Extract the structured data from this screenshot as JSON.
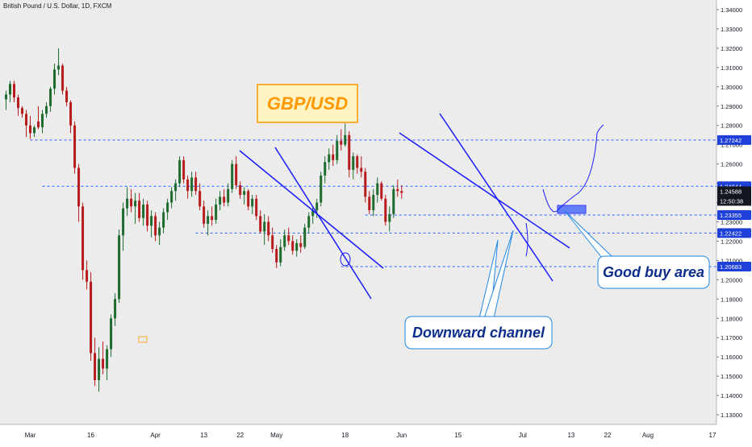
{
  "header": {
    "title": "British Pound / U.S. Dollar, 1D, FXCM"
  },
  "colors": {
    "up": "#1e6b2e",
    "down": "#b71c1c",
    "hline": "#2962ff",
    "channel": "#1a1aff",
    "price_label_bg": "#1e40d8",
    "current_label_bg": "#131722",
    "gbpusd_box": "#ff9800",
    "callout_border": "#1e88e5",
    "callout_text": "#0d2e8a"
  },
  "annotations": {
    "pair_label": "GBP/USD",
    "good_buy_area": "Good buy area",
    "downward_channel": "Downward channel"
  },
  "chart_data": {
    "type": "candlestick",
    "title": "British Pound / U.S. Dollar, 1D, FXCM",
    "ylim": [
      1.125,
      1.345
    ],
    "y_ticks": [
      1.13,
      1.14,
      1.15,
      1.16,
      1.17,
      1.18,
      1.19,
      1.2,
      1.21,
      1.22,
      1.23,
      1.24,
      1.25,
      1.26,
      1.27,
      1.28,
      1.29,
      1.3,
      1.31,
      1.32,
      1.33,
      1.34
    ],
    "y_tick_labels": [
      "1.13000",
      "1.14000",
      "1.15000",
      "1.16000",
      "1.17000",
      "1.18000",
      "1.19000",
      "1.20000",
      "1.21000",
      "1.22000",
      "1.23000",
      "1.24000",
      "1.25000",
      "1.26000",
      "1.27000",
      "1.28000",
      "1.29000",
      "1.30000",
      "1.31000",
      "1.32000",
      "1.33000",
      "1.34000"
    ],
    "x_ticks": [
      {
        "label": "Mar",
        "day": 1
      },
      {
        "label": "16",
        "day": 16
      },
      {
        "label": "Apr",
        "day": 32
      },
      {
        "label": "13",
        "day": 44
      },
      {
        "label": "22",
        "day": 53
      },
      {
        "label": "May",
        "day": 62
      },
      {
        "label": "18",
        "day": 79
      },
      {
        "label": "Jun",
        "day": 93
      },
      {
        "label": "15",
        "day": 107
      },
      {
        "label": "Jul",
        "day": 123
      },
      {
        "label": "13",
        "day": 135
      },
      {
        "label": "22",
        "day": 144
      },
      {
        "label": "Aug",
        "day": 154
      },
      {
        "label": "17",
        "day": 170
      }
    ],
    "xlim": [
      -6.5,
      171
    ],
    "horizontal_levels": [
      {
        "value": 1.27242,
        "label": "1.27242",
        "x_from": 1
      },
      {
        "value": 1.24844,
        "label": "1.24844",
        "x_from": 4
      },
      {
        "value": 1.23355,
        "label": "1.23355",
        "x_from": 84
      },
      {
        "value": 1.22422,
        "label": "1.22422",
        "x_from": 42
      },
      {
        "value": 1.20683,
        "label": "1.20683",
        "x_from": 78
      }
    ],
    "current_price": {
      "value": 1.24588,
      "label": "1.24588",
      "countdown": "12:50:38"
    },
    "candles": [
      {
        "d": -5,
        "o": 1.2935,
        "h": 1.298,
        "l": 1.288,
        "c": 1.296
      },
      {
        "d": -4,
        "o": 1.296,
        "h": 1.303,
        "l": 1.292,
        "c": 1.3015
      },
      {
        "d": -3,
        "o": 1.3015,
        "h": 1.303,
        "l": 1.292,
        "c": 1.2945
      },
      {
        "d": -2,
        "o": 1.2945,
        "h": 1.296,
        "l": 1.285,
        "c": 1.289
      },
      {
        "d": -1,
        "o": 1.289,
        "h": 1.29,
        "l": 1.284,
        "c": 1.286
      },
      {
        "d": 0,
        "o": 1.286,
        "h": 1.288,
        "l": 1.274,
        "c": 1.28
      },
      {
        "d": 1,
        "o": 1.28,
        "h": 1.285,
        "l": 1.273,
        "c": 1.276
      },
      {
        "d": 2,
        "o": 1.276,
        "h": 1.28,
        "l": 1.274,
        "c": 1.279
      },
      {
        "d": 3,
        "o": 1.282,
        "h": 1.29,
        "l": 1.278,
        "c": 1.279
      },
      {
        "d": 4,
        "o": 1.279,
        "h": 1.288,
        "l": 1.276,
        "c": 1.286
      },
      {
        "d": 5,
        "o": 1.286,
        "h": 1.292,
        "l": 1.284,
        "c": 1.29
      },
      {
        "d": 6,
        "o": 1.29,
        "h": 1.3,
        "l": 1.287,
        "c": 1.299
      },
      {
        "d": 7,
        "o": 1.299,
        "h": 1.312,
        "l": 1.296,
        "c": 1.309
      },
      {
        "d": 8,
        "o": 1.309,
        "h": 1.32,
        "l": 1.306,
        "c": 1.311
      },
      {
        "d": 9,
        "o": 1.311,
        "h": 1.312,
        "l": 1.296,
        "c": 1.298
      },
      {
        "d": 10,
        "o": 1.298,
        "h": 1.3,
        "l": 1.29,
        "c": 1.292
      },
      {
        "d": 11,
        "o": 1.292,
        "h": 1.293,
        "l": 1.276,
        "c": 1.28
      },
      {
        "d": 12,
        "o": 1.28,
        "h": 1.282,
        "l": 1.255,
        "c": 1.258
      },
      {
        "d": 13,
        "o": 1.258,
        "h": 1.26,
        "l": 1.23,
        "c": 1.238
      },
      {
        "d": 14,
        "o": 1.238,
        "h": 1.24,
        "l": 1.2,
        "c": 1.205
      },
      {
        "d": 15,
        "o": 1.205,
        "h": 1.21,
        "l": 1.195,
        "c": 1.199
      },
      {
        "d": 16,
        "o": 1.199,
        "h": 1.204,
        "l": 1.158,
        "c": 1.162
      },
      {
        "d": 17,
        "o": 1.162,
        "h": 1.17,
        "l": 1.145,
        "c": 1.148
      },
      {
        "d": 18,
        "o": 1.148,
        "h": 1.165,
        "l": 1.142,
        "c": 1.159
      },
      {
        "d": 19,
        "o": 1.159,
        "h": 1.168,
        "l": 1.151,
        "c": 1.154
      },
      {
        "d": 20,
        "o": 1.154,
        "h": 1.166,
        "l": 1.148,
        "c": 1.164
      },
      {
        "d": 21,
        "o": 1.164,
        "h": 1.182,
        "l": 1.16,
        "c": 1.18
      },
      {
        "d": 22,
        "o": 1.18,
        "h": 1.193,
        "l": 1.176,
        "c": 1.19
      },
      {
        "d": 23,
        "o": 1.19,
        "h": 1.226,
        "l": 1.188,
        "c": 1.223
      },
      {
        "d": 24,
        "o": 1.223,
        "h": 1.24,
        "l": 1.215,
        "c": 1.237
      },
      {
        "d": 25,
        "o": 1.237,
        "h": 1.248,
        "l": 1.233,
        "c": 1.242
      },
      {
        "d": 26,
        "o": 1.242,
        "h": 1.247,
        "l": 1.235,
        "c": 1.238
      },
      {
        "d": 27,
        "o": 1.238,
        "h": 1.245,
        "l": 1.229,
        "c": 1.241
      },
      {
        "d": 28,
        "o": 1.241,
        "h": 1.245,
        "l": 1.23,
        "c": 1.232
      },
      {
        "d": 29,
        "o": 1.232,
        "h": 1.242,
        "l": 1.228,
        "c": 1.239
      },
      {
        "d": 30,
        "o": 1.239,
        "h": 1.241,
        "l": 1.225,
        "c": 1.228
      },
      {
        "d": 31,
        "o": 1.228,
        "h": 1.236,
        "l": 1.222,
        "c": 1.233
      },
      {
        "d": 32,
        "o": 1.233,
        "h": 1.235,
        "l": 1.22,
        "c": 1.223
      },
      {
        "d": 33,
        "o": 1.223,
        "h": 1.23,
        "l": 1.218,
        "c": 1.227
      },
      {
        "d": 34,
        "o": 1.227,
        "h": 1.237,
        "l": 1.224,
        "c": 1.235
      },
      {
        "d": 35,
        "o": 1.235,
        "h": 1.242,
        "l": 1.231,
        "c": 1.24
      },
      {
        "d": 36,
        "o": 1.24,
        "h": 1.248,
        "l": 1.237,
        "c": 1.246
      },
      {
        "d": 37,
        "o": 1.246,
        "h": 1.252,
        "l": 1.241,
        "c": 1.25
      },
      {
        "d": 38,
        "o": 1.25,
        "h": 1.264,
        "l": 1.248,
        "c": 1.262
      },
      {
        "d": 39,
        "o": 1.262,
        "h": 1.264,
        "l": 1.25,
        "c": 1.252
      },
      {
        "d": 40,
        "o": 1.252,
        "h": 1.254,
        "l": 1.242,
        "c": 1.246
      },
      {
        "d": 41,
        "o": 1.246,
        "h": 1.256,
        "l": 1.243,
        "c": 1.253
      },
      {
        "d": 42,
        "o": 1.253,
        "h": 1.256,
        "l": 1.244,
        "c": 1.246
      },
      {
        "d": 43,
        "o": 1.246,
        "h": 1.25,
        "l": 1.236,
        "c": 1.238
      },
      {
        "d": 44,
        "o": 1.238,
        "h": 1.241,
        "l": 1.227,
        "c": 1.229
      },
      {
        "d": 45,
        "o": 1.229,
        "h": 1.236,
        "l": 1.223,
        "c": 1.233
      },
      {
        "d": 46,
        "o": 1.233,
        "h": 1.238,
        "l": 1.228,
        "c": 1.231
      },
      {
        "d": 47,
        "o": 1.231,
        "h": 1.242,
        "l": 1.229,
        "c": 1.239
      },
      {
        "d": 48,
        "o": 1.239,
        "h": 1.246,
        "l": 1.236,
        "c": 1.243
      },
      {
        "d": 49,
        "o": 1.243,
        "h": 1.247,
        "l": 1.238,
        "c": 1.24
      },
      {
        "d": 50,
        "o": 1.24,
        "h": 1.25,
        "l": 1.238,
        "c": 1.247
      },
      {
        "d": 51,
        "o": 1.247,
        "h": 1.262,
        "l": 1.245,
        "c": 1.26
      },
      {
        "d": 52,
        "o": 1.26,
        "h": 1.264,
        "l": 1.247,
        "c": 1.249
      },
      {
        "d": 53,
        "o": 1.249,
        "h": 1.251,
        "l": 1.242,
        "c": 1.244
      },
      {
        "d": 54,
        "o": 1.244,
        "h": 1.248,
        "l": 1.239,
        "c": 1.246
      },
      {
        "d": 55,
        "o": 1.246,
        "h": 1.247,
        "l": 1.236,
        "c": 1.238
      },
      {
        "d": 56,
        "o": 1.238,
        "h": 1.244,
        "l": 1.234,
        "c": 1.242
      },
      {
        "d": 57,
        "o": 1.242,
        "h": 1.244,
        "l": 1.231,
        "c": 1.233
      },
      {
        "d": 58,
        "o": 1.233,
        "h": 1.236,
        "l": 1.224,
        "c": 1.225
      },
      {
        "d": 59,
        "o": 1.225,
        "h": 1.234,
        "l": 1.218,
        "c": 1.23
      },
      {
        "d": 60,
        "o": 1.23,
        "h": 1.233,
        "l": 1.22,
        "c": 1.223
      },
      {
        "d": 61,
        "o": 1.223,
        "h": 1.227,
        "l": 1.214,
        "c": 1.216
      },
      {
        "d": 62,
        "o": 1.216,
        "h": 1.218,
        "l": 1.206,
        "c": 1.209
      },
      {
        "d": 63,
        "o": 1.209,
        "h": 1.221,
        "l": 1.207,
        "c": 1.217
      },
      {
        "d": 64,
        "o": 1.217,
        "h": 1.226,
        "l": 1.215,
        "c": 1.223
      },
      {
        "d": 65,
        "o": 1.223,
        "h": 1.227,
        "l": 1.218,
        "c": 1.22
      },
      {
        "d": 66,
        "o": 1.22,
        "h": 1.223,
        "l": 1.213,
        "c": 1.215
      },
      {
        "d": 67,
        "o": 1.215,
        "h": 1.221,
        "l": 1.212,
        "c": 1.219
      },
      {
        "d": 68,
        "o": 1.219,
        "h": 1.223,
        "l": 1.214,
        "c": 1.217
      },
      {
        "d": 69,
        "o": 1.217,
        "h": 1.229,
        "l": 1.216,
        "c": 1.227
      },
      {
        "d": 70,
        "o": 1.227,
        "h": 1.235,
        "l": 1.224,
        "c": 1.233
      },
      {
        "d": 71,
        "o": 1.233,
        "h": 1.238,
        "l": 1.229,
        "c": 1.236
      },
      {
        "d": 72,
        "o": 1.236,
        "h": 1.242,
        "l": 1.232,
        "c": 1.24
      },
      {
        "d": 73,
        "o": 1.24,
        "h": 1.256,
        "l": 1.238,
        "c": 1.254
      },
      {
        "d": 74,
        "o": 1.254,
        "h": 1.264,
        "l": 1.25,
        "c": 1.261
      },
      {
        "d": 75,
        "o": 1.261,
        "h": 1.268,
        "l": 1.257,
        "c": 1.265
      },
      {
        "d": 76,
        "o": 1.265,
        "h": 1.27,
        "l": 1.259,
        "c": 1.262
      },
      {
        "d": 77,
        "o": 1.262,
        "h": 1.275,
        "l": 1.26,
        "c": 1.272
      },
      {
        "d": 78,
        "o": 1.272,
        "h": 1.278,
        "l": 1.267,
        "c": 1.27
      },
      {
        "d": 79,
        "o": 1.27,
        "h": 1.281,
        "l": 1.269,
        "c": 1.275
      },
      {
        "d": 80,
        "o": 1.275,
        "h": 1.277,
        "l": 1.253,
        "c": 1.257
      },
      {
        "d": 81,
        "o": 1.257,
        "h": 1.266,
        "l": 1.252,
        "c": 1.264
      },
      {
        "d": 82,
        "o": 1.264,
        "h": 1.265,
        "l": 1.255,
        "c": 1.258
      },
      {
        "d": 83,
        "o": 1.258,
        "h": 1.264,
        "l": 1.253,
        "c": 1.256
      },
      {
        "d": 84,
        "o": 1.256,
        "h": 1.258,
        "l": 1.24,
        "c": 1.243
      },
      {
        "d": 85,
        "o": 1.243,
        "h": 1.246,
        "l": 1.234,
        "c": 1.236
      },
      {
        "d": 86,
        "o": 1.236,
        "h": 1.247,
        "l": 1.233,
        "c": 1.244
      },
      {
        "d": 87,
        "o": 1.244,
        "h": 1.253,
        "l": 1.24,
        "c": 1.25
      },
      {
        "d": 88,
        "o": 1.25,
        "h": 1.251,
        "l": 1.241,
        "c": 1.242
      },
      {
        "d": 89,
        "o": 1.242,
        "h": 1.244,
        "l": 1.228,
        "c": 1.23
      },
      {
        "d": 90,
        "o": 1.23,
        "h": 1.238,
        "l": 1.225,
        "c": 1.234
      },
      {
        "d": 91,
        "o": 1.234,
        "h": 1.249,
        "l": 1.232,
        "c": 1.247
      },
      {
        "d": 92,
        "o": 1.247,
        "h": 1.252,
        "l": 1.243,
        "c": 1.246
      },
      {
        "d": 93,
        "o": 1.246,
        "h": 1.249,
        "l": 1.242,
        "c": 1.245
      }
    ]
  }
}
